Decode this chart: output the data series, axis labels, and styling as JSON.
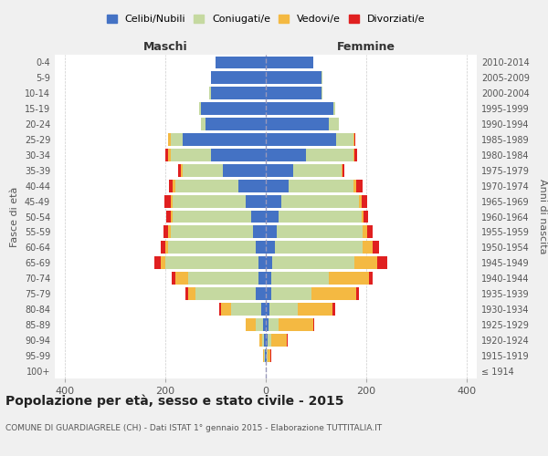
{
  "age_groups": [
    "100+",
    "95-99",
    "90-94",
    "85-89",
    "80-84",
    "75-79",
    "70-74",
    "65-69",
    "60-64",
    "55-59",
    "50-54",
    "45-49",
    "40-44",
    "35-39",
    "30-34",
    "25-29",
    "20-24",
    "15-19",
    "10-14",
    "5-9",
    "0-4"
  ],
  "birth_years": [
    "≤ 1914",
    "1915-1919",
    "1920-1924",
    "1925-1929",
    "1930-1934",
    "1935-1939",
    "1940-1944",
    "1945-1949",
    "1950-1954",
    "1955-1959",
    "1960-1964",
    "1965-1969",
    "1970-1974",
    "1975-1979",
    "1980-1984",
    "1985-1989",
    "1990-1994",
    "1995-1999",
    "2000-2004",
    "2005-2009",
    "2010-2014"
  ],
  "maschi": {
    "celibi": [
      0,
      2,
      3,
      5,
      10,
      20,
      15,
      15,
      20,
      25,
      30,
      40,
      55,
      85,
      110,
      165,
      120,
      130,
      110,
      110,
      100
    ],
    "coniugati": [
      0,
      2,
      5,
      15,
      60,
      120,
      140,
      185,
      175,
      165,
      155,
      145,
      125,
      80,
      80,
      25,
      10,
      2,
      2,
      0,
      0
    ],
    "vedovi": [
      0,
      2,
      5,
      20,
      20,
      15,
      25,
      10,
      5,
      5,
      5,
      5,
      5,
      5,
      5,
      5,
      0,
      0,
      0,
      0,
      0
    ],
    "divorziati": [
      0,
      0,
      0,
      0,
      2,
      5,
      8,
      12,
      10,
      8,
      8,
      12,
      8,
      5,
      5,
      0,
      0,
      0,
      0,
      0,
      0
    ]
  },
  "femmine": {
    "nubili": [
      0,
      2,
      3,
      5,
      8,
      10,
      10,
      12,
      18,
      22,
      25,
      30,
      45,
      55,
      80,
      140,
      125,
      135,
      110,
      110,
      95
    ],
    "coniugate": [
      0,
      2,
      8,
      20,
      55,
      80,
      115,
      165,
      175,
      170,
      165,
      155,
      130,
      95,
      95,
      35,
      20,
      3,
      2,
      2,
      0
    ],
    "vedove": [
      0,
      5,
      30,
      70,
      70,
      90,
      80,
      45,
      20,
      10,
      5,
      5,
      5,
      2,
      2,
      2,
      0,
      0,
      0,
      0,
      0
    ],
    "divorziate": [
      0,
      2,
      2,
      2,
      5,
      5,
      8,
      20,
      12,
      10,
      8,
      12,
      12,
      5,
      5,
      2,
      0,
      0,
      0,
      0,
      0
    ]
  },
  "colors": {
    "celibi": "#4472c4",
    "coniugati": "#c5d9a0",
    "vedovi": "#f4b942",
    "divorziati": "#e02020"
  },
  "xlim": 420,
  "title": "Popolazione per età, sesso e stato civile - 2015",
  "subtitle": "COMUNE DI GUARDIAGRELE (CH) - Dati ISTAT 1° gennaio 2015 - Elaborazione TUTTITALIA.IT",
  "ylabel_left": "Fasce di età",
  "ylabel_right": "Anni di nascita",
  "xlabel_left": "Maschi",
  "xlabel_right": "Femmine",
  "bg_color": "#f0f0f0",
  "plot_bg": "#ffffff"
}
